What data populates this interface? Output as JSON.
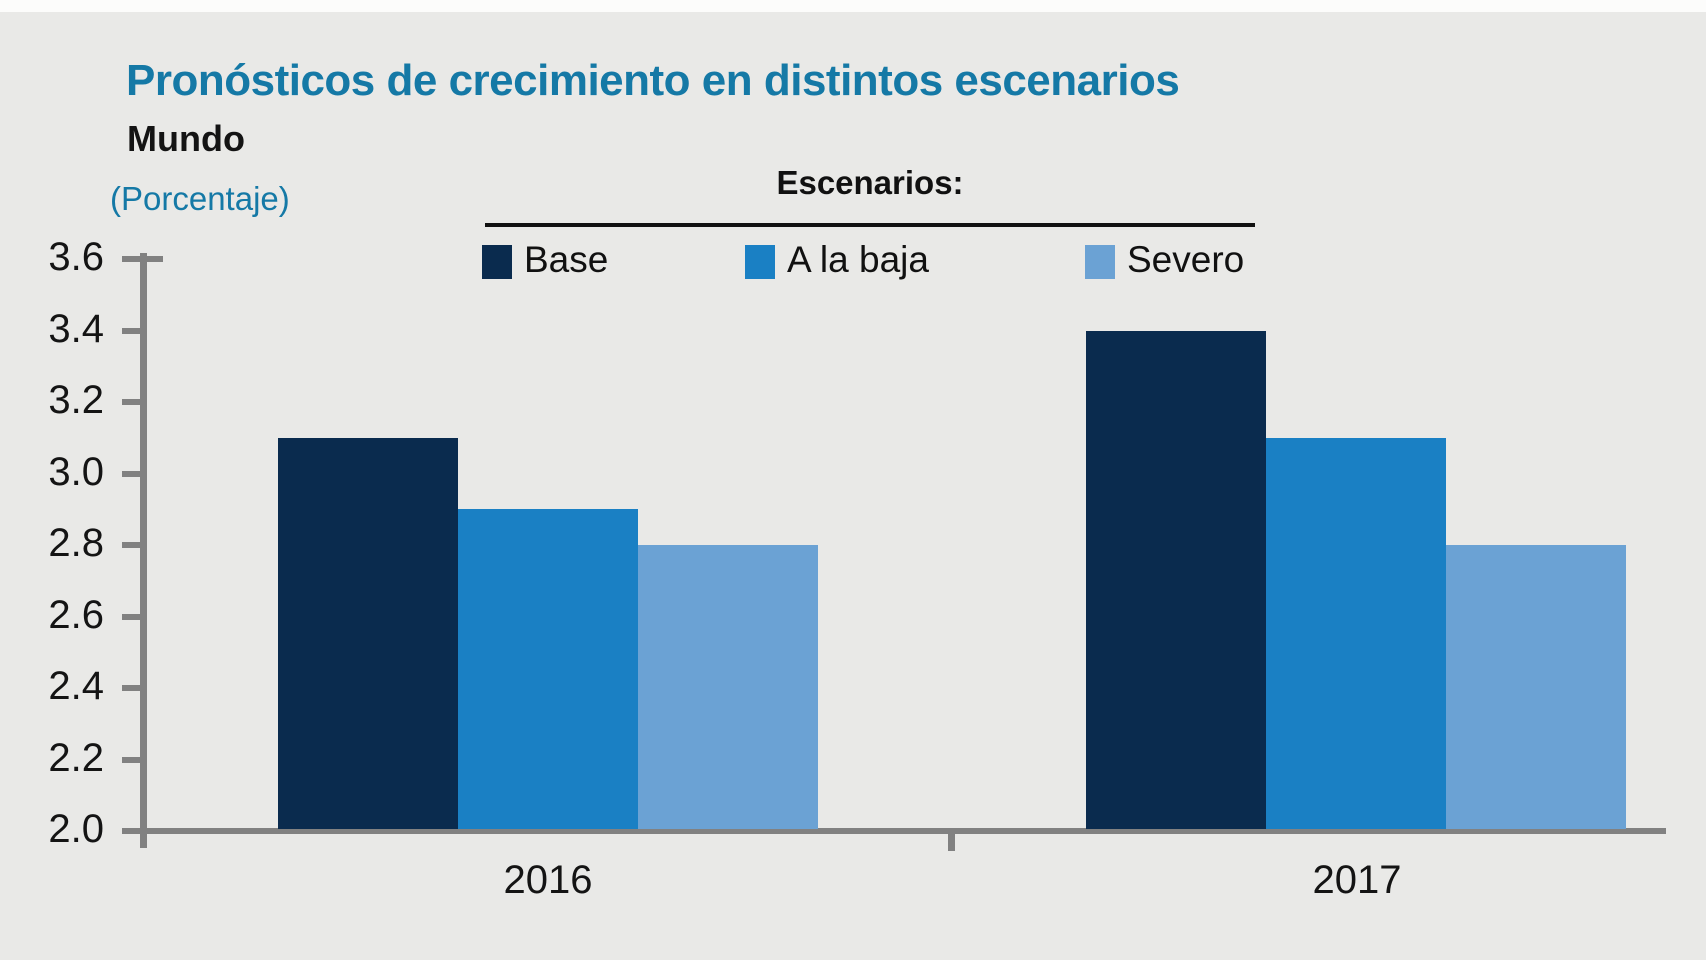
{
  "title": "Pronósticos de crecimiento en distintos escenarios",
  "region_label": "Mundo",
  "unit_label": "(Porcentaje)",
  "legend": {
    "title": "Escenarios:",
    "items": [
      "Base",
      "A la baja",
      "Severo"
    ]
  },
  "colors": {
    "title_teal": "#1579a6",
    "text_black": "#141414",
    "axis_gray": "#818181",
    "background": "#e9e9e7",
    "base_navy": "#0a2b4e",
    "a_la_baja_blue": "#1a80c4",
    "severo_light_blue": "#6ba2d4"
  },
  "chart_data": {
    "type": "bar",
    "title": "Pronósticos de crecimiento en distintos escenarios",
    "subtitle": "Mundo",
    "unit": "(Porcentaje)",
    "categories": [
      "2016",
      "2017"
    ],
    "series": [
      {
        "name": "Base",
        "color": "#0a2b4e",
        "values": [
          3.1,
          3.4
        ]
      },
      {
        "name": "A la baja",
        "color": "#1a80c4",
        "values": [
          2.9,
          3.1
        ]
      },
      {
        "name": "Severo",
        "color": "#6ba2d4",
        "values": [
          2.8,
          2.8
        ]
      }
    ],
    "ylim": [
      2.0,
      3.6
    ],
    "ytick_step": 0.2,
    "ytick_labels": [
      "3.6",
      "3.4",
      "3.2",
      "3.0",
      "2.8",
      "2.6",
      "2.4",
      "2.2",
      "2.0"
    ],
    "grid": false,
    "legend_position": "top-center",
    "legend_title": "Escenarios:"
  }
}
